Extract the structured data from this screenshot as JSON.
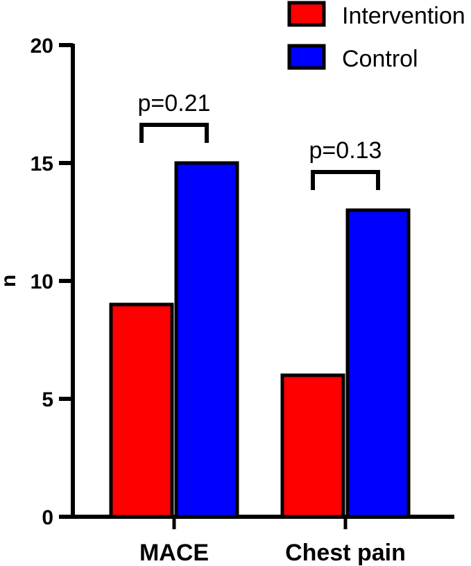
{
  "chart_data": {
    "type": "bar",
    "categories": [
      "MACE",
      "Chest pain"
    ],
    "series": [
      {
        "name": "Intervention",
        "values": [
          9,
          6
        ],
        "color": "#ff0000"
      },
      {
        "name": "Control",
        "values": [
          15,
          13
        ],
        "color": "#0000ff"
      }
    ],
    "ylabel": "n",
    "xlabel": "",
    "ylim": [
      0,
      20
    ],
    "yticks": [
      0,
      5,
      10,
      15,
      20
    ],
    "ytick_labels": [
      "0",
      "5",
      "10",
      "15",
      "20"
    ],
    "grid": false,
    "legend": "top-right",
    "annotations": [
      {
        "category": "MACE",
        "text": "p=0.21"
      },
      {
        "category": "Chest pain",
        "text": "p=0.13"
      }
    ]
  }
}
